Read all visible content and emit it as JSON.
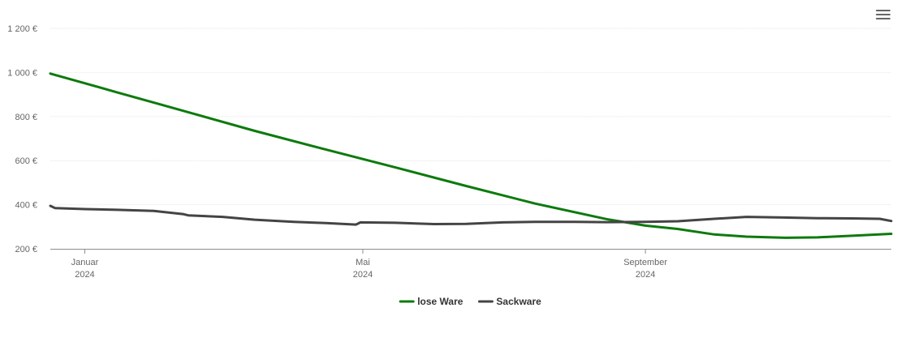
{
  "menu": {
    "icon": "hamburger-menu-icon"
  },
  "chart_data": {
    "type": "line",
    "title": "",
    "xlabel": "",
    "ylabel": "",
    "ylim": [
      200,
      1200
    ],
    "y_ticks": [
      {
        "value": 200,
        "label": "200 €"
      },
      {
        "value": 400,
        "label": "400 €"
      },
      {
        "value": 600,
        "label": "600 €"
      },
      {
        "value": 800,
        "label": "800 €"
      },
      {
        "value": 1000,
        "label": "1 000 €"
      },
      {
        "value": 1200,
        "label": "1 200 €"
      }
    ],
    "xlim": [
      "2023-12-17",
      "2024-12-17"
    ],
    "x_ticks": [
      {
        "date": "2024-01-01",
        "label": "Januar",
        "year": "2024"
      },
      {
        "date": "2024-05-01",
        "label": "Mai",
        "year": "2024"
      },
      {
        "date": "2024-09-01",
        "label": "September",
        "year": "2024"
      }
    ],
    "grid": true,
    "legend_position": "bottom-center",
    "series": [
      {
        "name": "lose Ware",
        "color": "#0d7a0d",
        "points": [
          [
            "2023-12-17",
            995
          ],
          [
            "2024-01-15",
            910
          ],
          [
            "2024-02-15",
            820
          ],
          [
            "2024-03-15",
            735
          ],
          [
            "2024-04-15",
            650
          ],
          [
            "2024-05-15",
            570
          ],
          [
            "2024-06-15",
            485
          ],
          [
            "2024-07-15",
            405
          ],
          [
            "2024-08-15",
            335
          ],
          [
            "2024-09-01",
            305
          ],
          [
            "2024-09-15",
            290
          ],
          [
            "2024-10-01",
            265
          ],
          [
            "2024-10-15",
            255
          ],
          [
            "2024-11-01",
            250
          ],
          [
            "2024-11-15",
            252
          ],
          [
            "2024-12-01",
            260
          ],
          [
            "2024-12-17",
            268
          ]
        ]
      },
      {
        "name": "Sackware",
        "color": "#444444",
        "points": [
          [
            "2023-12-17",
            395
          ],
          [
            "2023-12-19",
            385
          ],
          [
            "2024-01-01",
            380
          ],
          [
            "2024-01-15",
            377
          ],
          [
            "2024-01-31",
            372
          ],
          [
            "2024-02-13",
            357
          ],
          [
            "2024-02-15",
            352
          ],
          [
            "2024-03-01",
            345
          ],
          [
            "2024-03-15",
            332
          ],
          [
            "2024-04-01",
            322
          ],
          [
            "2024-04-15",
            317
          ],
          [
            "2024-04-28",
            310
          ],
          [
            "2024-04-30",
            320
          ],
          [
            "2024-05-15",
            318
          ],
          [
            "2024-06-01",
            312
          ],
          [
            "2024-06-15",
            313
          ],
          [
            "2024-07-01",
            320
          ],
          [
            "2024-07-15",
            322
          ],
          [
            "2024-08-01",
            322
          ],
          [
            "2024-08-15",
            321
          ],
          [
            "2024-09-01",
            322
          ],
          [
            "2024-09-15",
            325
          ],
          [
            "2024-10-01",
            336
          ],
          [
            "2024-10-15",
            345
          ],
          [
            "2024-10-31",
            342
          ],
          [
            "2024-11-15",
            339
          ],
          [
            "2024-11-30",
            338
          ],
          [
            "2024-12-12",
            336
          ],
          [
            "2024-12-17",
            326
          ]
        ]
      }
    ]
  }
}
